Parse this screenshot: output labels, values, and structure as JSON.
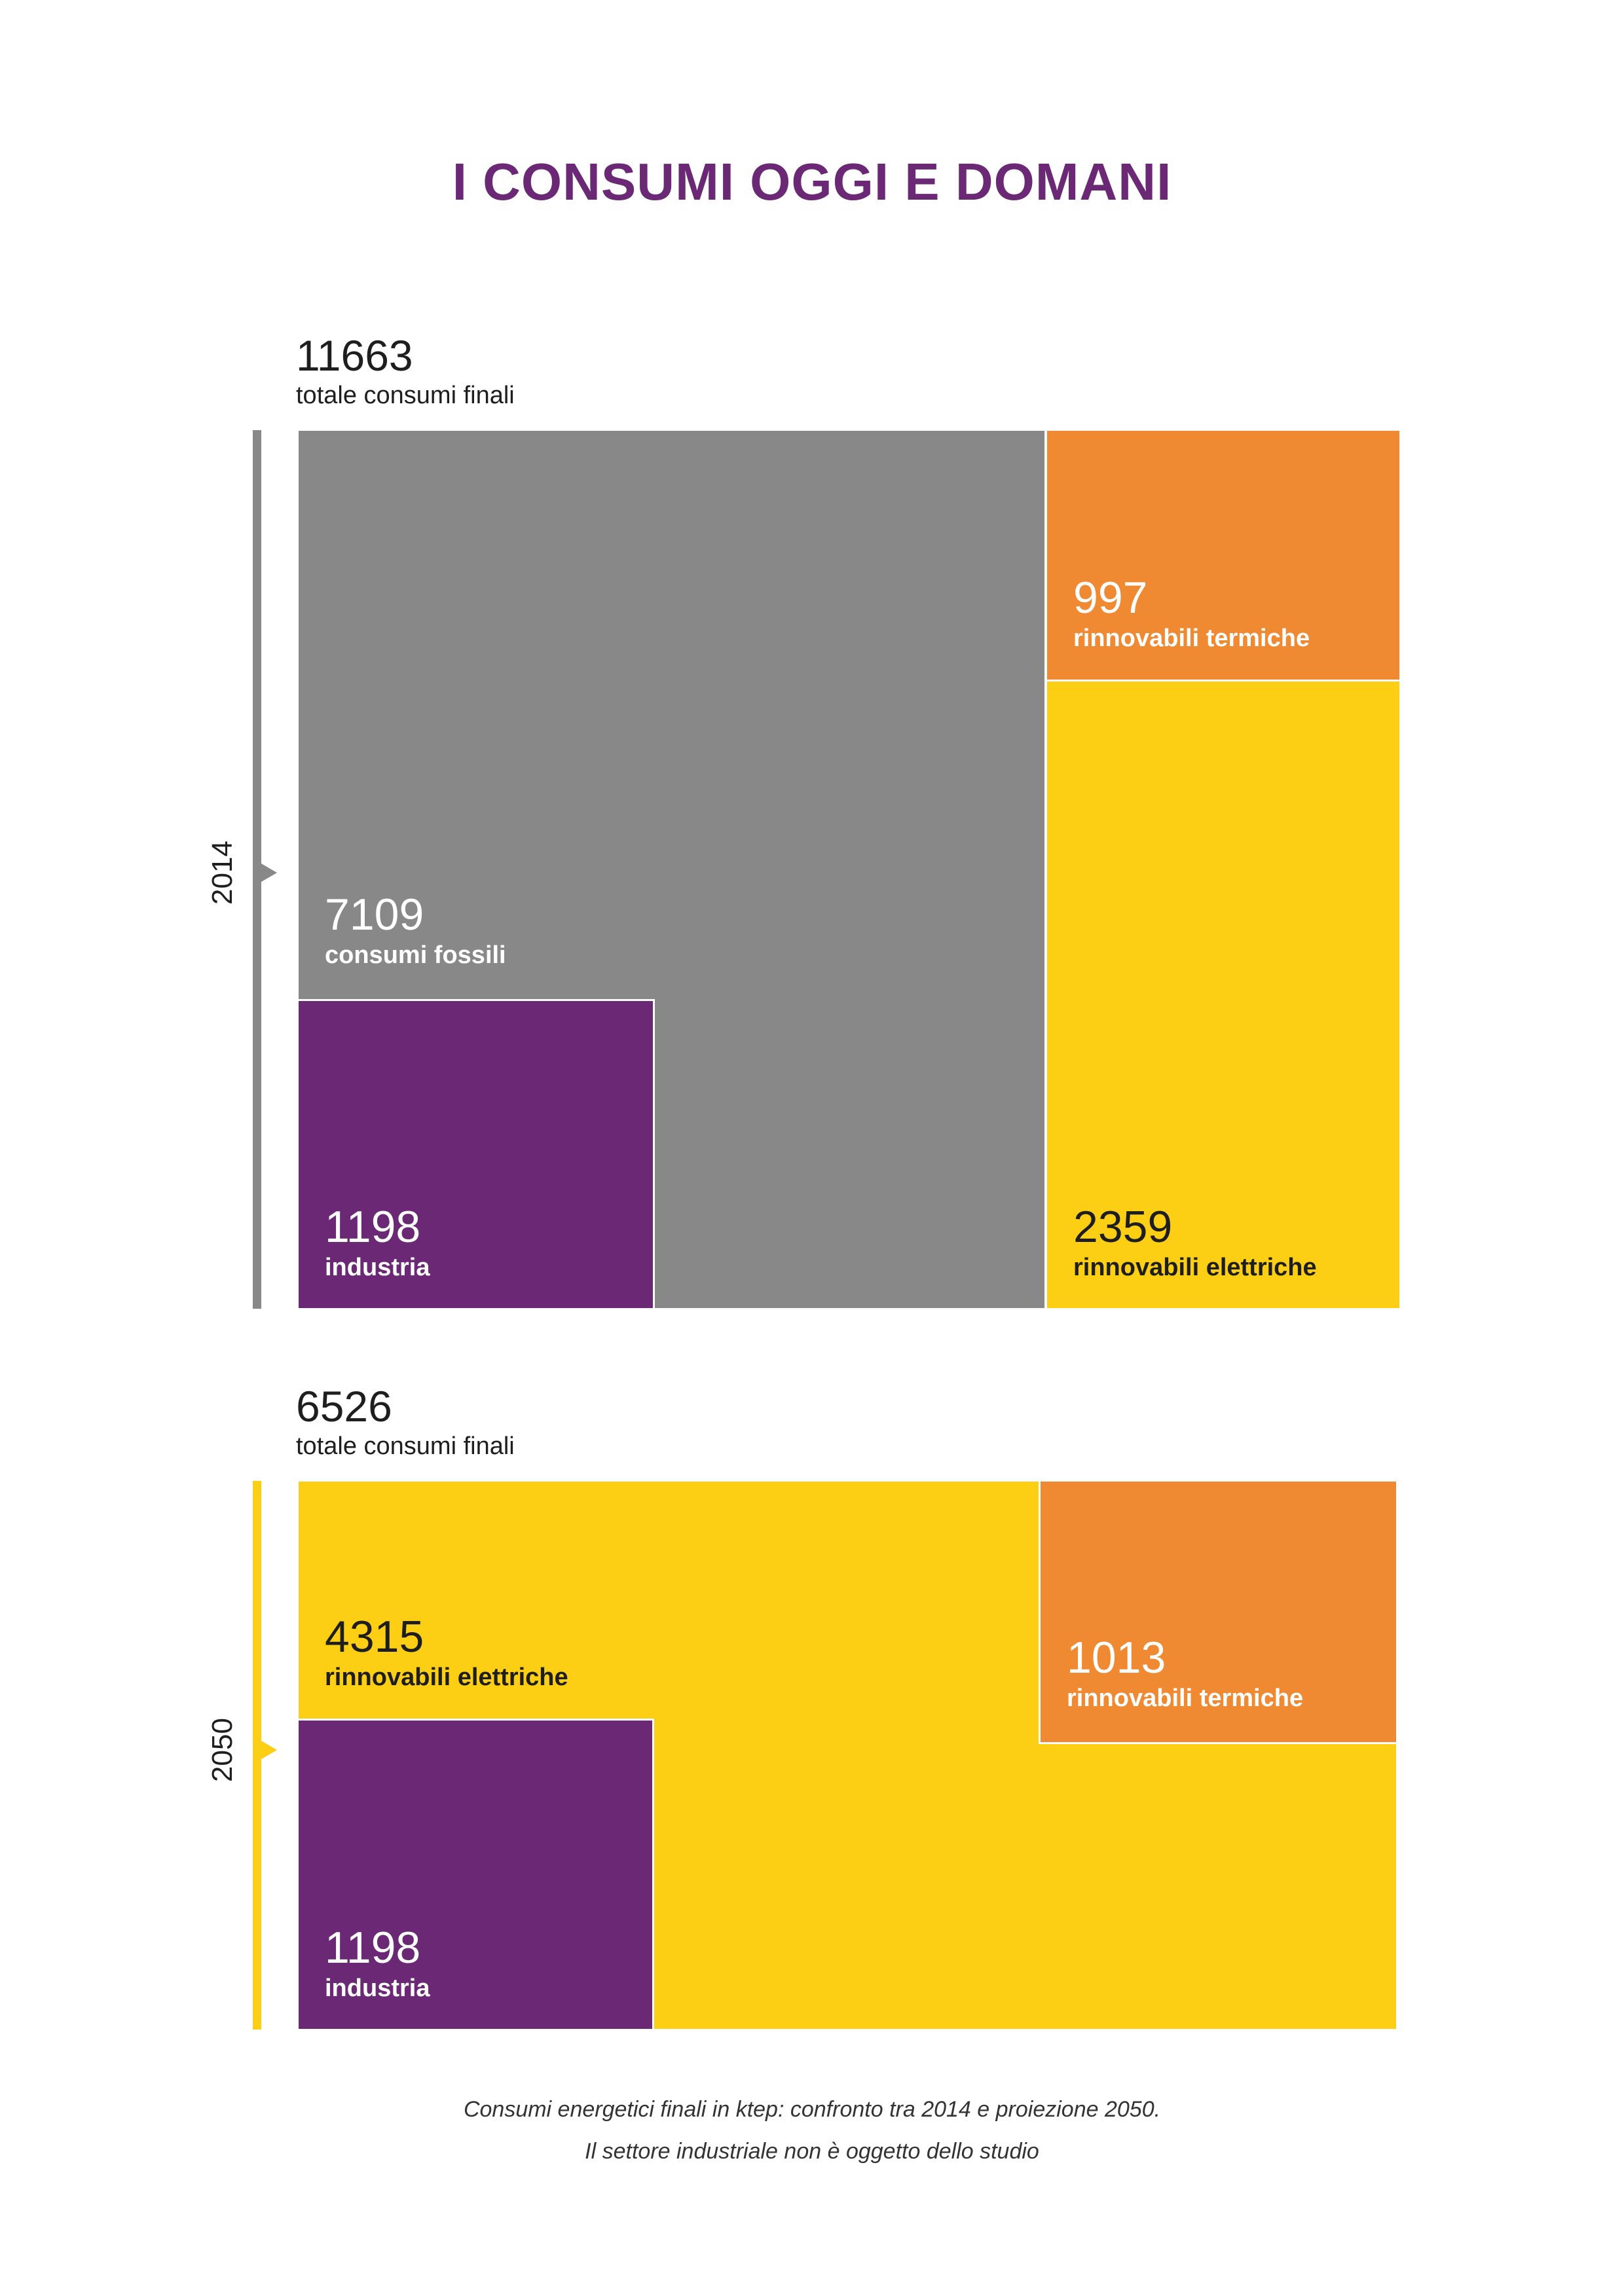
{
  "title": "I CONSUMI OGGI E DOMANI",
  "colors": {
    "title": "#6a2875",
    "fossili": "#888888",
    "industria": "#6a2875",
    "rinnovabili_termiche": "#ef8a32",
    "rinnovabili_elettriche": "#fcce14",
    "timeline_2014": "#888888",
    "timeline_2050": "#fcce14"
  },
  "chart_data": [
    {
      "type": "treemap",
      "title": "2014",
      "year": "2014",
      "unit": "ktep",
      "total": {
        "value": "11663",
        "label": "totale consumi finali"
      },
      "items": [
        {
          "key": "fossili",
          "value": 7109,
          "label": "consumi fossili",
          "color": "#888888",
          "text_color": "light"
        },
        {
          "key": "industria",
          "value": 1198,
          "label": "industria",
          "color": "#6a2875",
          "text_color": "light",
          "nested_in": "fossili"
        },
        {
          "key": "rinnovabili_termiche",
          "value": 997,
          "label": "rinnovabili termiche",
          "color": "#ef8a32",
          "text_color": "light"
        },
        {
          "key": "rinnovabili_elettriche",
          "value": 2359,
          "label": "rinnovabili elettriche",
          "color": "#fcce14",
          "text_color": "dark"
        }
      ]
    },
    {
      "type": "treemap",
      "title": "2050",
      "year": "2050",
      "unit": "ktep",
      "total": {
        "value": "6526",
        "label": "totale consumi finali"
      },
      "items": [
        {
          "key": "rinnovabili_elettriche",
          "value": 4315,
          "label": "rinnovabili elettriche",
          "color": "#fcce14",
          "text_color": "dark"
        },
        {
          "key": "industria",
          "value": 1198,
          "label": "industria",
          "color": "#6a2875",
          "text_color": "light",
          "nested_in": "rinnovabili_elettriche"
        },
        {
          "key": "rinnovabili_termiche",
          "value": 1013,
          "label": "rinnovabili termiche",
          "color": "#ef8a32",
          "text_color": "light"
        }
      ]
    }
  ],
  "caption": {
    "line1": "Consumi energetici finali in ktep: confronto tra 2014 e proiezione 2050.",
    "line2": "Il settore industriale non è oggetto dello studio"
  }
}
